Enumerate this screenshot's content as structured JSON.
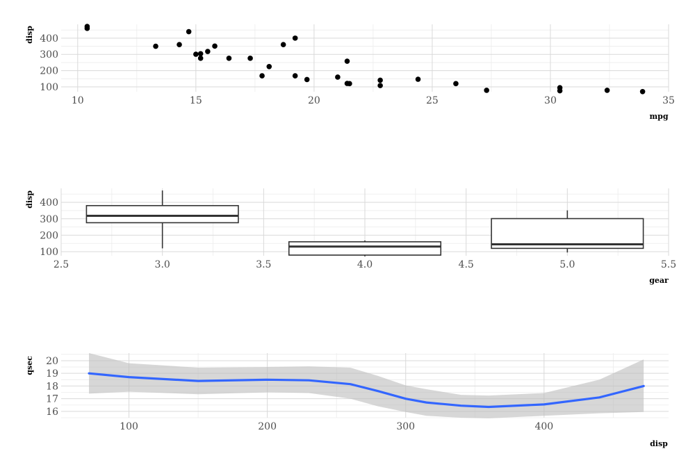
{
  "chart_data": [
    {
      "type": "scatter",
      "xlabel": "mpg",
      "ylabel": "disp",
      "xlim": [
        9.3,
        35
      ],
      "ylim": [
        70,
        485
      ],
      "xticks": [
        10,
        15,
        20,
        25,
        30,
        35
      ],
      "yticks": [
        100,
        200,
        300,
        400
      ],
      "grid": true,
      "points": [
        {
          "x": 10.4,
          "y": 472
        },
        {
          "x": 10.4,
          "y": 460
        },
        {
          "x": 13.3,
          "y": 350
        },
        {
          "x": 14.3,
          "y": 360
        },
        {
          "x": 14.7,
          "y": 440
        },
        {
          "x": 15.0,
          "y": 301
        },
        {
          "x": 15.2,
          "y": 304
        },
        {
          "x": 15.2,
          "y": 276
        },
        {
          "x": 15.5,
          "y": 318
        },
        {
          "x": 15.8,
          "y": 351
        },
        {
          "x": 16.4,
          "y": 276
        },
        {
          "x": 17.3,
          "y": 276
        },
        {
          "x": 17.8,
          "y": 168
        },
        {
          "x": 18.1,
          "y": 225
        },
        {
          "x": 18.7,
          "y": 360
        },
        {
          "x": 19.2,
          "y": 400
        },
        {
          "x": 19.2,
          "y": 168
        },
        {
          "x": 19.7,
          "y": 145
        },
        {
          "x": 21.0,
          "y": 160
        },
        {
          "x": 21.4,
          "y": 258
        },
        {
          "x": 21.4,
          "y": 121
        },
        {
          "x": 21.5,
          "y": 120
        },
        {
          "x": 22.8,
          "y": 141
        },
        {
          "x": 22.8,
          "y": 108
        },
        {
          "x": 24.4,
          "y": 147
        },
        {
          "x": 26.0,
          "y": 120
        },
        {
          "x": 27.3,
          "y": 79
        },
        {
          "x": 30.4,
          "y": 95
        },
        {
          "x": 30.4,
          "y": 76
        },
        {
          "x": 32.4,
          "y": 79
        },
        {
          "x": 33.9,
          "y": 71
        }
      ]
    },
    {
      "type": "box",
      "xlabel": "gear",
      "ylabel": "disp",
      "xlim": [
        2.5,
        5.5
      ],
      "ylim": [
        75,
        485
      ],
      "xticks": [
        "2.5",
        "3.0",
        "3.5",
        "4.0",
        "4.5",
        "5.0",
        "5.5"
      ],
      "yticks": [
        100,
        200,
        300,
        400
      ],
      "grid": true,
      "boxes": [
        {
          "x": 3,
          "whisker_low": 120,
          "q1": 276,
          "median": 318,
          "q3": 380,
          "whisker_high": 472
        },
        {
          "x": 4,
          "whisker_low": 71,
          "q1": 79,
          "median": 131,
          "q3": 160,
          "whisker_high": 168
        },
        {
          "x": 5,
          "whisker_low": 95,
          "q1": 120,
          "median": 145,
          "q3": 301,
          "whisker_high": 351
        }
      ]
    },
    {
      "type": "line",
      "xlabel": "disp",
      "ylabel": "qsec",
      "xlim": [
        51,
        490
      ],
      "ylim": [
        15.5,
        20.6
      ],
      "xticks": [
        100,
        200,
        300,
        400
      ],
      "yticks": [
        16,
        17,
        18,
        19,
        20
      ],
      "grid": true,
      "series": [
        {
          "color": "#3366ff",
          "x": [
            71.1,
            100,
            150,
            200,
            230,
            260,
            280,
            300,
            315,
            340,
            360,
            400,
            440,
            472
          ],
          "y": [
            19.0,
            18.7,
            18.4,
            18.5,
            18.45,
            18.15,
            17.6,
            17.0,
            16.7,
            16.45,
            16.35,
            16.55,
            17.1,
            18.0
          ],
          "lo": [
            17.4,
            17.55,
            17.35,
            17.5,
            17.45,
            17.0,
            16.4,
            15.95,
            15.65,
            15.5,
            15.45,
            15.65,
            15.85,
            15.95
          ],
          "hi": [
            20.6,
            19.8,
            19.45,
            19.5,
            19.55,
            19.45,
            18.8,
            18.05,
            17.75,
            17.3,
            17.25,
            17.45,
            18.5,
            20.1
          ]
        }
      ]
    }
  ]
}
